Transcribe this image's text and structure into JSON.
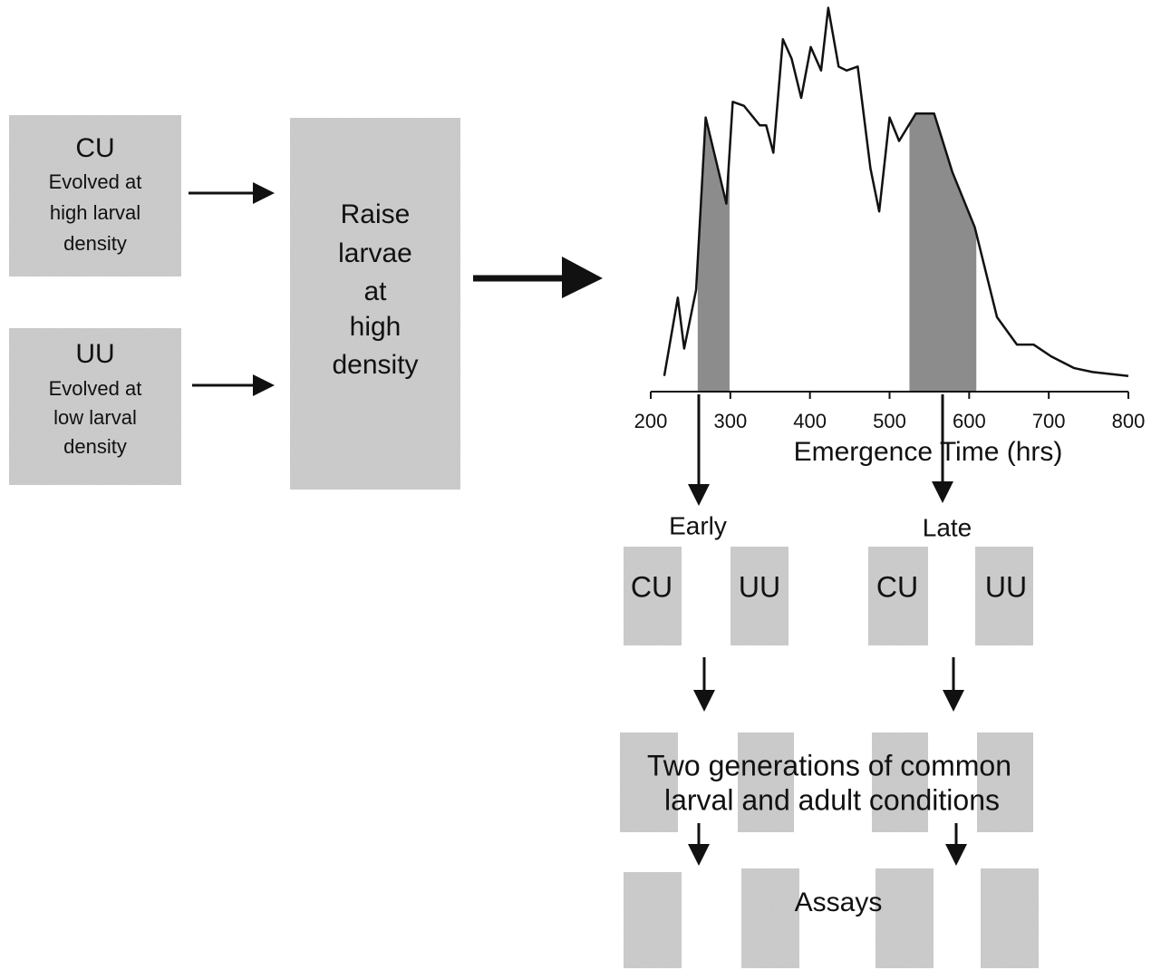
{
  "sources": [
    {
      "label": "CU",
      "description": [
        "Evolved at",
        "high larval",
        "density"
      ]
    },
    {
      "label": "UU",
      "description": [
        "Evolved at",
        "low larval",
        "density"
      ]
    }
  ],
  "treatment": [
    "Raise",
    "larvae",
    "at",
    "high",
    "density"
  ],
  "chart_data": {
    "type": "line",
    "x_label": "Emergence Time (hrs)",
    "x": [
      217,
      234,
      242,
      257,
      269,
      295,
      303,
      317,
      337,
      345,
      354,
      366,
      377,
      389,
      401,
      414,
      423,
      436,
      446,
      460,
      476,
      487,
      500,
      512,
      533,
      556,
      579,
      607,
      635,
      660,
      681,
      703,
      732,
      755,
      800
    ],
    "values": [
      4,
      24,
      11,
      26,
      70,
      48,
      74,
      73,
      68,
      68,
      61,
      90,
      85,
      75,
      88,
      82,
      98,
      83,
      82,
      83,
      57,
      46,
      70,
      64,
      71,
      71,
      56,
      42,
      19,
      12,
      12,
      9,
      6,
      5,
      4
    ],
    "color": "#111111",
    "shaded_ranges": [
      [
        259,
        299
      ],
      [
        525,
        609
      ]
    ],
    "shade_color": "#8c8c8c",
    "xlim": [
      200,
      800
    ],
    "ylim": [
      0,
      100
    ],
    "xticks": [
      200,
      300,
      400,
      500,
      600,
      700,
      800
    ]
  },
  "groups": [
    "Early",
    "Late"
  ],
  "selected": [
    "CU",
    "UU",
    "CU",
    "UU"
  ],
  "common_conditions": [
    "Two generations of common",
    "larval and adult conditions"
  ],
  "assays": "Assays"
}
